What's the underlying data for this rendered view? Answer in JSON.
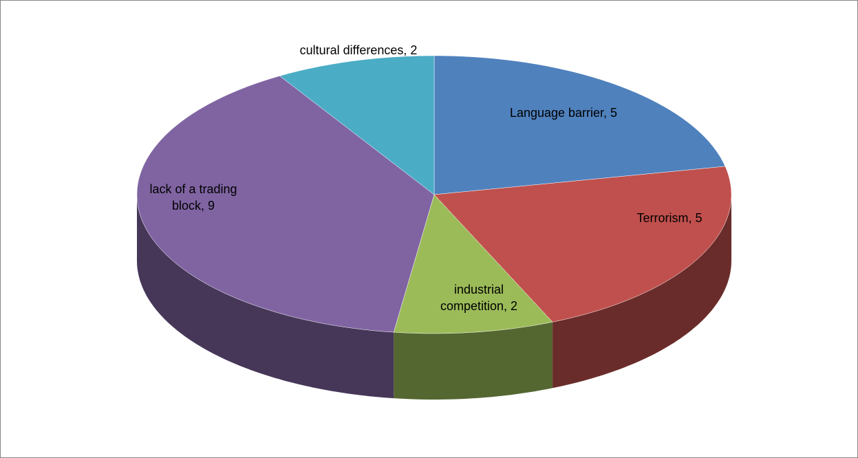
{
  "chart_data": {
    "type": "pie3d",
    "values": [
      5,
      5,
      2,
      9,
      2
    ],
    "value_labels": [
      "Language barrier, 5",
      "Terrorism, 5",
      "industrial competition, 2",
      "lack of a trading block, 9",
      "cultural differences, 2"
    ],
    "colors": [
      "#4f81bd",
      "#c0504d",
      "#9bbb59",
      "#8064a2",
      "#4bacc6"
    ]
  }
}
